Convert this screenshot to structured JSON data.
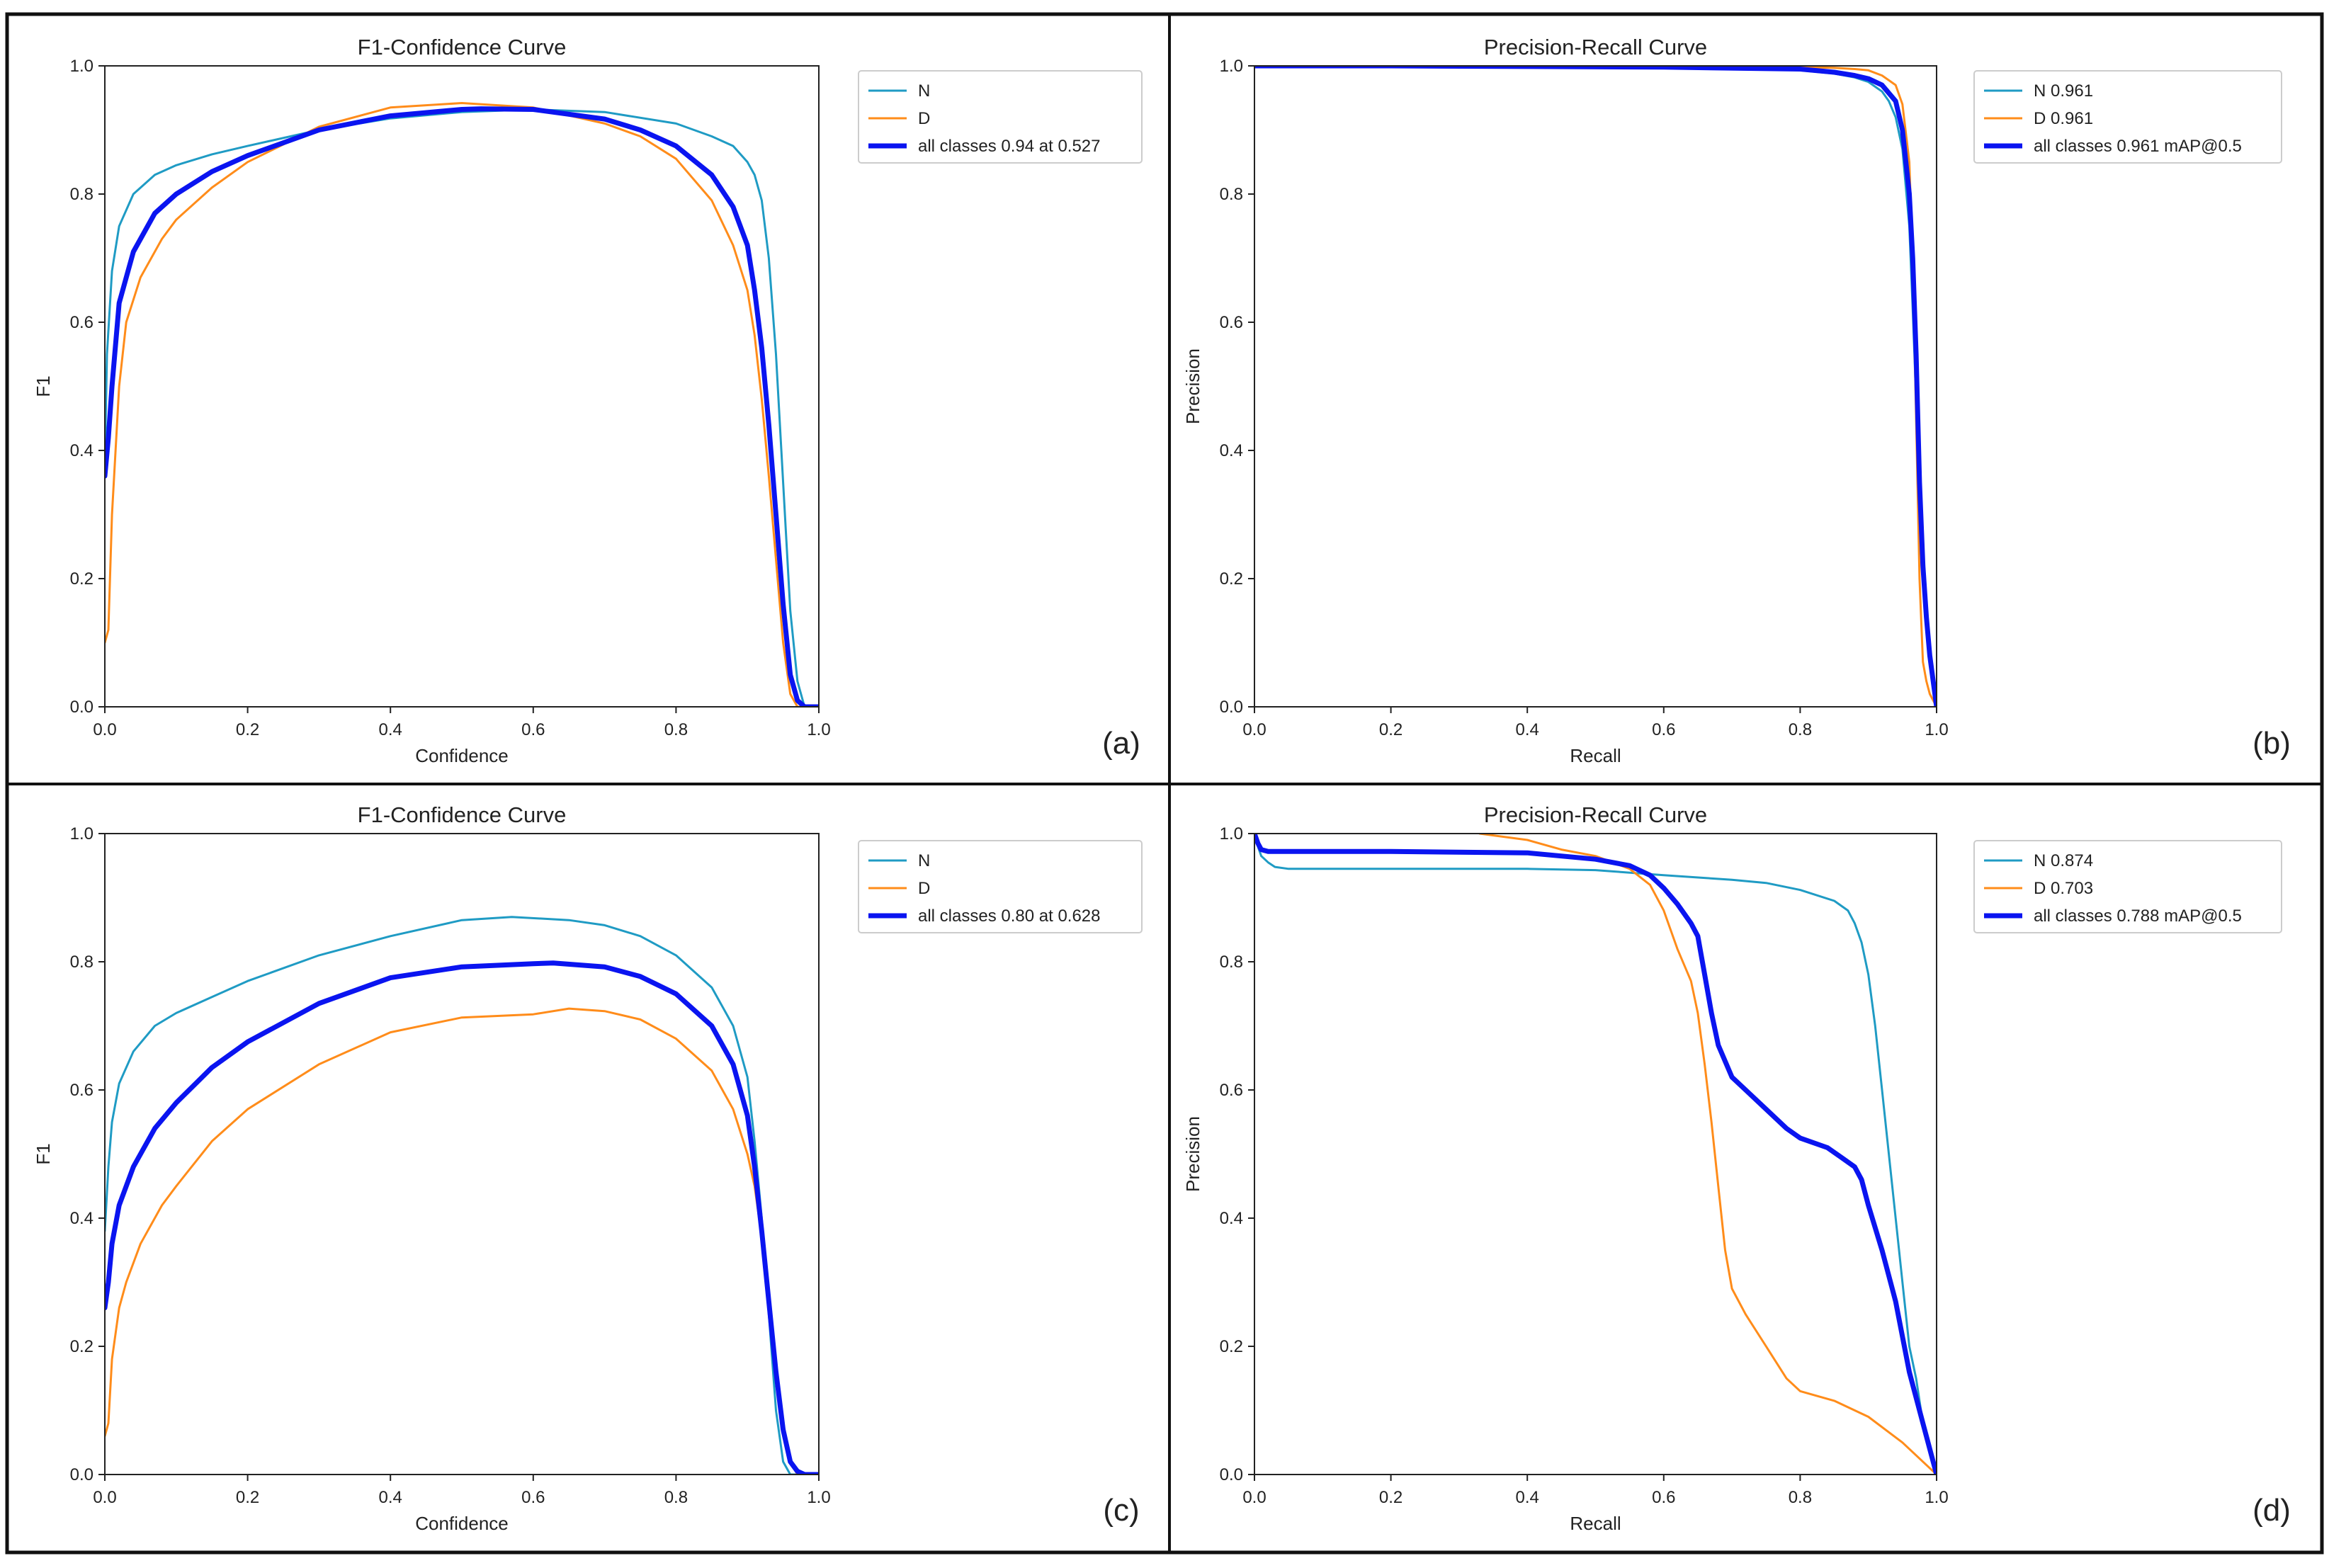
{
  "colors": {
    "N": "#1f9bc4",
    "D": "#ff8c1a",
    "all": "#0a14f0",
    "frame": "#111111",
    "axes": "#222222",
    "legend_border": "#cccccc"
  },
  "chart_data": [
    {
      "type": "line",
      "panel_label": "(a)",
      "title": "F1-Confidence Curve",
      "xlabel": "Confidence",
      "ylabel": "F1",
      "xlim": [
        0,
        1
      ],
      "ylim": [
        0,
        1
      ],
      "xticks": [
        "0.0",
        "0.2",
        "0.4",
        "0.6",
        "0.8",
        "1.0"
      ],
      "yticks": [
        "0.0",
        "0.2",
        "0.4",
        "0.6",
        "0.8",
        "1.0"
      ],
      "grid": false,
      "legend_position": "outside-top-right",
      "series": [
        {
          "name": "N",
          "color_key": "N",
          "bold": false,
          "x": [
            0.0,
            0.003,
            0.01,
            0.02,
            0.04,
            0.07,
            0.1,
            0.15,
            0.2,
            0.3,
            0.4,
            0.5,
            0.6,
            0.7,
            0.8,
            0.85,
            0.88,
            0.9,
            0.91,
            0.92,
            0.93,
            0.94,
            0.95,
            0.96,
            0.97,
            0.98,
            0.99,
            1.0
          ],
          "y": [
            0.38,
            0.55,
            0.68,
            0.75,
            0.8,
            0.83,
            0.845,
            0.862,
            0.875,
            0.9,
            0.918,
            0.928,
            0.932,
            0.928,
            0.91,
            0.89,
            0.875,
            0.85,
            0.83,
            0.79,
            0.7,
            0.55,
            0.35,
            0.15,
            0.04,
            0.0,
            0.0,
            0.0
          ]
        },
        {
          "name": "D",
          "color_key": "D",
          "bold": false,
          "x": [
            0.0,
            0.005,
            0.01,
            0.02,
            0.03,
            0.05,
            0.08,
            0.1,
            0.15,
            0.2,
            0.3,
            0.4,
            0.5,
            0.6,
            0.7,
            0.75,
            0.8,
            0.85,
            0.88,
            0.9,
            0.91,
            0.92,
            0.93,
            0.94,
            0.95,
            0.96,
            0.97,
            0.98,
            1.0
          ],
          "y": [
            0.1,
            0.12,
            0.3,
            0.5,
            0.6,
            0.67,
            0.73,
            0.76,
            0.81,
            0.85,
            0.905,
            0.935,
            0.942,
            0.935,
            0.91,
            0.89,
            0.855,
            0.79,
            0.72,
            0.65,
            0.58,
            0.48,
            0.36,
            0.23,
            0.1,
            0.02,
            0.0,
            0.0,
            0.0
          ]
        },
        {
          "name": "all classes 0.94 at 0.527",
          "color_key": "all",
          "bold": true,
          "x": [
            0.0,
            0.005,
            0.01,
            0.02,
            0.04,
            0.07,
            0.1,
            0.15,
            0.2,
            0.3,
            0.4,
            0.5,
            0.527,
            0.6,
            0.7,
            0.75,
            0.8,
            0.85,
            0.88,
            0.9,
            0.91,
            0.92,
            0.93,
            0.94,
            0.95,
            0.96,
            0.97,
            0.98,
            0.99,
            1.0
          ],
          "y": [
            0.36,
            0.42,
            0.5,
            0.63,
            0.71,
            0.77,
            0.8,
            0.835,
            0.86,
            0.9,
            0.922,
            0.932,
            0.933,
            0.932,
            0.917,
            0.9,
            0.875,
            0.83,
            0.78,
            0.72,
            0.65,
            0.56,
            0.44,
            0.3,
            0.16,
            0.05,
            0.01,
            0.0,
            0.0,
            0.0
          ]
        }
      ]
    },
    {
      "type": "line",
      "panel_label": "(b)",
      "title": "Precision-Recall Curve",
      "xlabel": "Recall",
      "ylabel": "Precision",
      "xlim": [
        0,
        1
      ],
      "ylim": [
        0,
        1
      ],
      "xticks": [
        "0.0",
        "0.2",
        "0.4",
        "0.6",
        "0.8",
        "1.0"
      ],
      "yticks": [
        "0.0",
        "0.2",
        "0.4",
        "0.6",
        "0.8",
        "1.0"
      ],
      "grid": false,
      "legend_position": "outside-top-right",
      "series": [
        {
          "name": "N 0.961",
          "color_key": "N",
          "bold": false,
          "x": [
            0.0,
            0.2,
            0.4,
            0.6,
            0.7,
            0.8,
            0.85,
            0.88,
            0.9,
            0.92,
            0.93,
            0.94,
            0.95,
            0.96,
            0.965,
            0.97,
            0.975,
            0.98,
            0.985,
            0.99,
            1.0
          ],
          "y": [
            1.0,
            1.0,
            0.999,
            0.998,
            0.997,
            0.993,
            0.988,
            0.982,
            0.975,
            0.96,
            0.945,
            0.92,
            0.87,
            0.75,
            0.62,
            0.48,
            0.35,
            0.22,
            0.15,
            0.08,
            0.0
          ]
        },
        {
          "name": "D 0.961",
          "color_key": "D",
          "bold": false,
          "x": [
            0.0,
            0.2,
            0.4,
            0.6,
            0.8,
            0.85,
            0.88,
            0.9,
            0.92,
            0.94,
            0.95,
            0.96,
            0.965,
            0.97,
            0.975,
            0.98,
            0.985,
            0.99,
            1.0
          ],
          "y": [
            1.0,
            1.0,
            1.0,
            1.0,
            0.998,
            0.997,
            0.995,
            0.993,
            0.985,
            0.97,
            0.94,
            0.85,
            0.7,
            0.45,
            0.2,
            0.07,
            0.04,
            0.02,
            0.0
          ]
        },
        {
          "name": "all classes 0.961 mAP@0.5",
          "color_key": "all",
          "bold": true,
          "x": [
            0.0,
            0.2,
            0.4,
            0.6,
            0.8,
            0.85,
            0.88,
            0.9,
            0.92,
            0.94,
            0.95,
            0.96,
            0.965,
            0.97,
            0.975,
            0.98,
            0.985,
            0.99,
            1.0
          ],
          "y": [
            1.0,
            1.0,
            0.999,
            0.998,
            0.995,
            0.99,
            0.985,
            0.98,
            0.97,
            0.945,
            0.9,
            0.8,
            0.7,
            0.55,
            0.35,
            0.22,
            0.14,
            0.08,
            0.0
          ]
        }
      ]
    },
    {
      "type": "line",
      "panel_label": "(c)",
      "title": "F1-Confidence Curve",
      "xlabel": "Confidence",
      "ylabel": "F1",
      "xlim": [
        0,
        1
      ],
      "ylim": [
        0,
        1
      ],
      "xticks": [
        "0.0",
        "0.2",
        "0.4",
        "0.6",
        "0.8",
        "1.0"
      ],
      "yticks": [
        "0.0",
        "0.2",
        "0.4",
        "0.6",
        "0.8",
        "1.0"
      ],
      "grid": false,
      "legend_position": "outside-top-right",
      "series": [
        {
          "name": "N",
          "color_key": "N",
          "bold": false,
          "x": [
            0.0,
            0.005,
            0.01,
            0.02,
            0.04,
            0.07,
            0.1,
            0.15,
            0.2,
            0.3,
            0.4,
            0.5,
            0.57,
            0.65,
            0.7,
            0.75,
            0.8,
            0.85,
            0.88,
            0.9,
            0.91,
            0.92,
            0.93,
            0.94,
            0.95,
            0.96,
            0.97,
            1.0
          ],
          "y": [
            0.38,
            0.48,
            0.55,
            0.61,
            0.66,
            0.7,
            0.72,
            0.745,
            0.77,
            0.81,
            0.84,
            0.865,
            0.87,
            0.865,
            0.857,
            0.84,
            0.81,
            0.76,
            0.7,
            0.62,
            0.52,
            0.4,
            0.25,
            0.1,
            0.02,
            0.0,
            0.0,
            0.0
          ]
        },
        {
          "name": "D",
          "color_key": "D",
          "bold": false,
          "x": [
            0.0,
            0.005,
            0.01,
            0.02,
            0.03,
            0.05,
            0.08,
            0.1,
            0.15,
            0.2,
            0.3,
            0.4,
            0.5,
            0.6,
            0.65,
            0.7,
            0.75,
            0.8,
            0.85,
            0.88,
            0.9,
            0.91,
            0.92,
            0.93,
            0.94,
            0.95,
            0.96,
            0.97,
            1.0
          ],
          "y": [
            0.06,
            0.08,
            0.18,
            0.26,
            0.3,
            0.36,
            0.42,
            0.45,
            0.52,
            0.57,
            0.64,
            0.69,
            0.713,
            0.718,
            0.727,
            0.723,
            0.71,
            0.68,
            0.63,
            0.57,
            0.5,
            0.45,
            0.37,
            0.28,
            0.17,
            0.07,
            0.02,
            0.0,
            0.0
          ]
        },
        {
          "name": "all classes 0.80 at 0.628",
          "color_key": "all",
          "bold": true,
          "x": [
            0.0,
            0.005,
            0.01,
            0.02,
            0.04,
            0.07,
            0.1,
            0.15,
            0.2,
            0.3,
            0.4,
            0.5,
            0.6,
            0.628,
            0.7,
            0.75,
            0.8,
            0.85,
            0.88,
            0.9,
            0.91,
            0.92,
            0.93,
            0.94,
            0.95,
            0.96,
            0.97,
            0.98,
            1.0
          ],
          "y": [
            0.26,
            0.3,
            0.36,
            0.42,
            0.48,
            0.54,
            0.58,
            0.635,
            0.675,
            0.735,
            0.775,
            0.792,
            0.797,
            0.798,
            0.792,
            0.777,
            0.75,
            0.7,
            0.64,
            0.56,
            0.48,
            0.38,
            0.27,
            0.16,
            0.07,
            0.02,
            0.005,
            0.0,
            0.0
          ]
        }
      ]
    },
    {
      "type": "line",
      "panel_label": "(d)",
      "title": "Precision-Recall Curve",
      "xlabel": "Recall",
      "ylabel": "Precision",
      "xlim": [
        0,
        1
      ],
      "ylim": [
        0,
        1
      ],
      "xticks": [
        "0.0",
        "0.2",
        "0.4",
        "0.6",
        "0.8",
        "1.0"
      ],
      "yticks": [
        "0.0",
        "0.2",
        "0.4",
        "0.6",
        "0.8",
        "1.0"
      ],
      "grid": false,
      "legend_position": "outside-top-right",
      "series": [
        {
          "name": "N 0.874",
          "color_key": "N",
          "bold": false,
          "x": [
            0.0,
            0.005,
            0.01,
            0.02,
            0.03,
            0.05,
            0.2,
            0.4,
            0.5,
            0.6,
            0.7,
            0.75,
            0.8,
            0.85,
            0.87,
            0.88,
            0.89,
            0.9,
            0.91,
            0.92,
            0.93,
            0.94,
            0.95,
            0.96,
            0.97,
            0.98,
            1.0
          ],
          "y": [
            1.0,
            0.98,
            0.965,
            0.955,
            0.948,
            0.945,
            0.945,
            0.945,
            0.943,
            0.935,
            0.928,
            0.923,
            0.912,
            0.895,
            0.88,
            0.86,
            0.83,
            0.78,
            0.7,
            0.6,
            0.5,
            0.4,
            0.3,
            0.2,
            0.15,
            0.08,
            0.0
          ]
        },
        {
          "name": "D 0.703",
          "color_key": "D",
          "bold": false,
          "x": [
            0.33,
            0.4,
            0.45,
            0.5,
            0.55,
            0.58,
            0.6,
            0.62,
            0.64,
            0.65,
            0.66,
            0.67,
            0.68,
            0.69,
            0.7,
            0.72,
            0.75,
            0.78,
            0.8,
            0.85,
            0.9,
            0.95,
            1.0
          ],
          "y": [
            1.0,
            0.99,
            0.975,
            0.965,
            0.945,
            0.92,
            0.88,
            0.82,
            0.77,
            0.72,
            0.64,
            0.55,
            0.45,
            0.35,
            0.29,
            0.25,
            0.2,
            0.15,
            0.13,
            0.115,
            0.09,
            0.05,
            0.0
          ]
        },
        {
          "name": "all classes 0.788 mAP@0.5",
          "color_key": "all",
          "bold": true,
          "x": [
            0.0,
            0.005,
            0.01,
            0.02,
            0.05,
            0.2,
            0.4,
            0.5,
            0.55,
            0.58,
            0.6,
            0.62,
            0.64,
            0.65,
            0.66,
            0.67,
            0.68,
            0.7,
            0.72,
            0.75,
            0.78,
            0.8,
            0.84,
            0.86,
            0.88,
            0.89,
            0.9,
            0.92,
            0.94,
            0.96,
            0.98,
            1.0
          ],
          "y": [
            1.0,
            0.985,
            0.975,
            0.972,
            0.972,
            0.972,
            0.97,
            0.96,
            0.95,
            0.935,
            0.915,
            0.89,
            0.86,
            0.84,
            0.78,
            0.72,
            0.67,
            0.62,
            0.6,
            0.57,
            0.54,
            0.525,
            0.51,
            0.495,
            0.48,
            0.46,
            0.42,
            0.35,
            0.27,
            0.16,
            0.08,
            0.0
          ]
        }
      ]
    }
  ]
}
